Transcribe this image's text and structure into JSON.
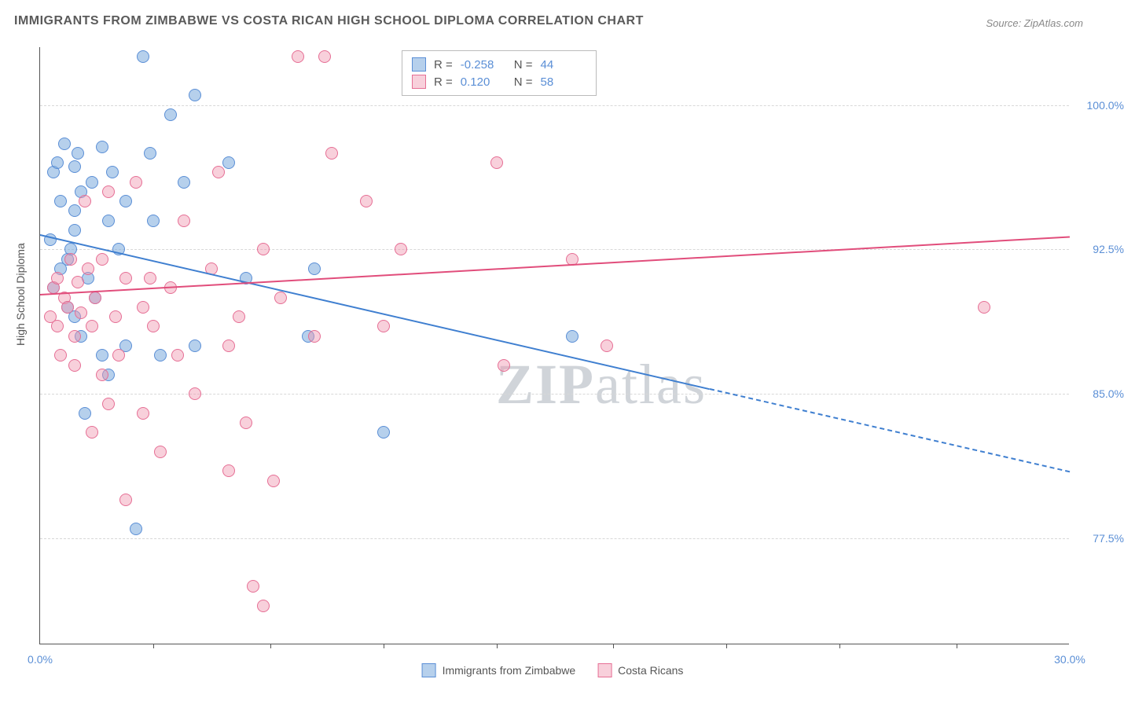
{
  "title": "IMMIGRANTS FROM ZIMBABWE VS COSTA RICAN HIGH SCHOOL DIPLOMA CORRELATION CHART",
  "source": "Source: ZipAtlas.com",
  "y_axis_title": "High School Diploma",
  "watermark": "ZIPatlas",
  "chart": {
    "type": "scatter",
    "xlim": [
      0,
      30
    ],
    "ylim": [
      72,
      103
    ],
    "x_ticks": [
      0,
      30
    ],
    "x_tick_labels": [
      "0.0%",
      "30.0%"
    ],
    "x_minor_ticks": [
      3.3,
      6.7,
      10,
      13.3,
      16.7,
      20,
      23.3,
      26.7
    ],
    "y_ticks": [
      77.5,
      85.0,
      92.5,
      100.0
    ],
    "y_tick_labels": [
      "77.5%",
      "85.0%",
      "92.5%",
      "100.0%"
    ],
    "grid_color": "#d8d8d8",
    "background_color": "#ffffff",
    "axis_color": "#555555",
    "tick_label_color": "#5b8fd6",
    "tick_label_fontsize": 14,
    "title_fontsize": 16,
    "title_color": "#5a5a5a",
    "legend_position": "top-center",
    "aspect_w": 1310,
    "aspect_h": 760
  },
  "series": [
    {
      "name": "Immigrants from Zimbabwe",
      "legend_label": "Immigrants from Zimbabwe",
      "marker_fill": "rgba(122,170,221,0.55)",
      "marker_stroke": "#5b8fd6",
      "line_color": "#3f7fd0",
      "R": "-0.258",
      "N": "44",
      "trend": {
        "x1": 0,
        "y1": 93.3,
        "x2": 19.5,
        "y2": 85.3
      },
      "trend_extrapolate": {
        "x1": 19.5,
        "y1": 85.3,
        "x2": 30,
        "y2": 81.0
      },
      "points": [
        [
          0.3,
          93.0
        ],
        [
          0.4,
          90.5
        ],
        [
          0.4,
          96.5
        ],
        [
          0.5,
          97.0
        ],
        [
          0.6,
          95.0
        ],
        [
          0.6,
          91.5
        ],
        [
          0.7,
          98.0
        ],
        [
          0.8,
          92.0
        ],
        [
          0.8,
          89.5
        ],
        [
          1.0,
          96.8
        ],
        [
          1.0,
          94.5
        ],
        [
          1.0,
          93.5
        ],
        [
          1.0,
          89.0
        ],
        [
          1.1,
          97.5
        ],
        [
          1.2,
          95.5
        ],
        [
          1.2,
          88.0
        ],
        [
          1.3,
          84.0
        ],
        [
          1.5,
          96.0
        ],
        [
          1.6,
          90.0
        ],
        [
          1.8,
          97.8
        ],
        [
          1.8,
          87.0
        ],
        [
          2.0,
          94.0
        ],
        [
          2.0,
          86.0
        ],
        [
          2.1,
          96.5
        ],
        [
          2.3,
          92.5
        ],
        [
          2.5,
          95.0
        ],
        [
          2.5,
          87.5
        ],
        [
          2.8,
          78.0
        ],
        [
          3.0,
          102.5
        ],
        [
          3.2,
          97.5
        ],
        [
          3.3,
          94.0
        ],
        [
          3.5,
          87.0
        ],
        [
          3.8,
          99.5
        ],
        [
          4.2,
          96.0
        ],
        [
          4.5,
          87.5
        ],
        [
          4.5,
          100.5
        ],
        [
          5.5,
          97.0
        ],
        [
          6.0,
          91.0
        ],
        [
          7.8,
          88.0
        ],
        [
          10.0,
          83.0
        ],
        [
          15.5,
          88.0
        ],
        [
          8.0,
          91.5
        ],
        [
          1.4,
          91.0
        ],
        [
          0.9,
          92.5
        ]
      ]
    },
    {
      "name": "Costa Ricans",
      "legend_label": "Costa Ricans",
      "marker_fill": "rgba(240,150,175,0.45)",
      "marker_stroke": "#e66f95",
      "line_color": "#e14d7b",
      "R": "0.120",
      "N": "58",
      "trend": {
        "x1": 0,
        "y1": 90.2,
        "x2": 30,
        "y2": 93.2
      },
      "points": [
        [
          0.3,
          89.0
        ],
        [
          0.4,
          90.5
        ],
        [
          0.5,
          88.5
        ],
        [
          0.5,
          91.0
        ],
        [
          0.6,
          87.0
        ],
        [
          0.7,
          90.0
        ],
        [
          0.8,
          89.5
        ],
        [
          0.9,
          92.0
        ],
        [
          1.0,
          88.0
        ],
        [
          1.0,
          86.5
        ],
        [
          1.1,
          90.8
        ],
        [
          1.2,
          89.2
        ],
        [
          1.3,
          95.0
        ],
        [
          1.4,
          91.5
        ],
        [
          1.5,
          88.5
        ],
        [
          1.5,
          83.0
        ],
        [
          1.6,
          90.0
        ],
        [
          1.8,
          86.0
        ],
        [
          1.8,
          92.0
        ],
        [
          2.0,
          95.5
        ],
        [
          2.0,
          84.5
        ],
        [
          2.2,
          89.0
        ],
        [
          2.3,
          87.0
        ],
        [
          2.5,
          91.0
        ],
        [
          2.5,
          79.5
        ],
        [
          2.8,
          96.0
        ],
        [
          3.0,
          84.0
        ],
        [
          3.0,
          89.5
        ],
        [
          3.2,
          91.0
        ],
        [
          3.3,
          88.5
        ],
        [
          3.5,
          82.0
        ],
        [
          3.8,
          90.5
        ],
        [
          4.0,
          87.0
        ],
        [
          4.2,
          94.0
        ],
        [
          4.5,
          85.0
        ],
        [
          5.0,
          91.5
        ],
        [
          5.2,
          96.5
        ],
        [
          5.5,
          87.5
        ],
        [
          5.5,
          81.0
        ],
        [
          5.8,
          89.0
        ],
        [
          6.0,
          83.5
        ],
        [
          6.2,
          75.0
        ],
        [
          6.5,
          74.0
        ],
        [
          6.5,
          92.5
        ],
        [
          6.8,
          80.5
        ],
        [
          7.0,
          90.0
        ],
        [
          7.5,
          102.5
        ],
        [
          8.0,
          88.0
        ],
        [
          8.3,
          102.5
        ],
        [
          8.5,
          97.5
        ],
        [
          9.5,
          95.0
        ],
        [
          10.0,
          88.5
        ],
        [
          10.5,
          92.5
        ],
        [
          13.3,
          97.0
        ],
        [
          13.5,
          86.5
        ],
        [
          15.5,
          92.0
        ],
        [
          16.5,
          87.5
        ],
        [
          27.5,
          89.5
        ]
      ]
    }
  ],
  "bottom_legend": {
    "items": [
      {
        "label": "Immigrants from Zimbabwe",
        "fill": "rgba(122,170,221,0.55)",
        "stroke": "#5b8fd6"
      },
      {
        "label": "Costa Ricans",
        "fill": "rgba(240,150,175,0.45)",
        "stroke": "#e66f95"
      }
    ]
  }
}
